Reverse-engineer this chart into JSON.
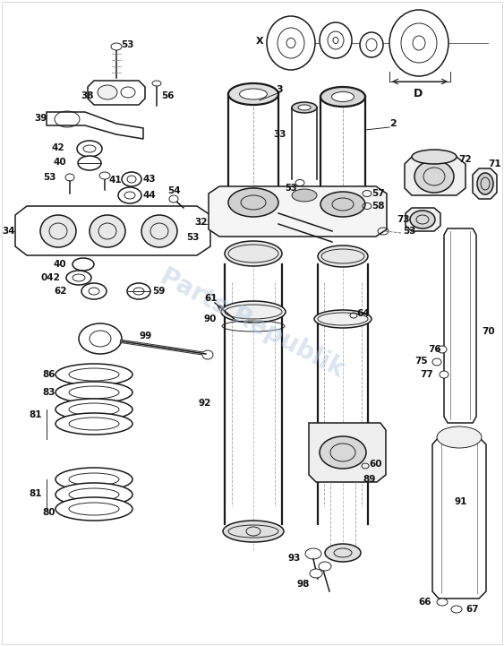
{
  "bg_color": "#ffffff",
  "watermark": "Parts Republik",
  "watermark_color": "#b0c8e0",
  "watermark_alpha": 0.45,
  "line_color": "#1a1a1a",
  "label_color": "#111111",
  "fig_width": 5.63,
  "fig_height": 7.21,
  "dpi": 100
}
